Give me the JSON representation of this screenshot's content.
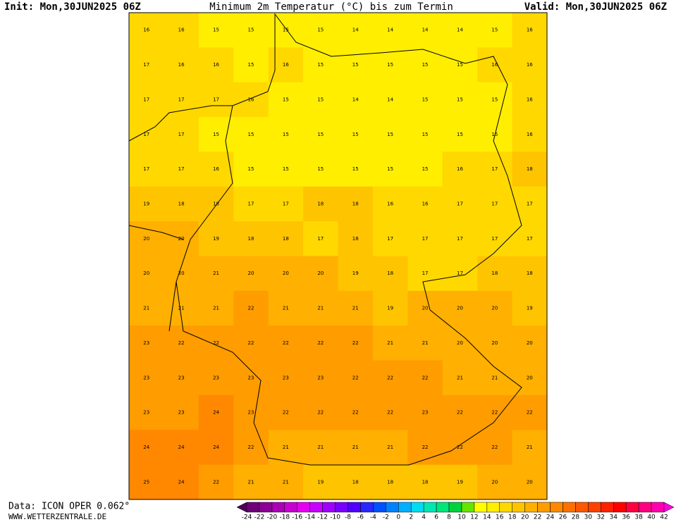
{
  "header": {
    "init": "Init: Mon,30JUN2025 06Z",
    "title": "Minimum 2m Temperatur (°C) bis zum Termin",
    "valid": "Valid: Mon,30JUN2025 06Z"
  },
  "footer": {
    "data": "Data: ICON OPER 0.062°",
    "site": "WWW.WETTERZENTRALE.DE"
  },
  "grid": [
    [
      16,
      16,
      15,
      15,
      15,
      15,
      14,
      14,
      14,
      14,
      15,
      16
    ],
    [
      17,
      16,
      16,
      15,
      16,
      15,
      15,
      15,
      15,
      15,
      16,
      16
    ],
    [
      17,
      17,
      17,
      16,
      15,
      15,
      14,
      14,
      15,
      15,
      15,
      16
    ],
    [
      17,
      17,
      15,
      15,
      15,
      15,
      15,
      15,
      15,
      15,
      15,
      16
    ],
    [
      17,
      17,
      16,
      15,
      15,
      15,
      15,
      15,
      15,
      16,
      17,
      18
    ],
    [
      19,
      18,
      18,
      17,
      17,
      18,
      18,
      16,
      16,
      17,
      17,
      17
    ],
    [
      20,
      20,
      19,
      18,
      18,
      17,
      18,
      17,
      17,
      17,
      17,
      17
    ],
    [
      20,
      20,
      21,
      20,
      20,
      20,
      19,
      18,
      17,
      17,
      18,
      18
    ],
    [
      21,
      21,
      21,
      22,
      21,
      21,
      21,
      19,
      20,
      20,
      20,
      19
    ],
    [
      23,
      22,
      22,
      22,
      22,
      22,
      22,
      21,
      21,
      20,
      20,
      20
    ],
    [
      23,
      23,
      23,
      23,
      23,
      23,
      22,
      22,
      22,
      21,
      21,
      20
    ],
    [
      23,
      23,
      24,
      23,
      22,
      22,
      22,
      22,
      23,
      22,
      22,
      22
    ],
    [
      24,
      24,
      24,
      22,
      21,
      21,
      21,
      21,
      22,
      22,
      22,
      21
    ],
    [
      25,
      24,
      22,
      21,
      21,
      19,
      18,
      18,
      18,
      19,
      20,
      20
    ]
  ],
  "colorbar": {
    "levels": [
      -24,
      -22,
      -20,
      -18,
      -16,
      -14,
      -12,
      -10,
      -8,
      -6,
      -4,
      -2,
      0,
      2,
      4,
      6,
      8,
      10,
      12,
      14,
      16,
      18,
      20,
      22,
      24,
      26,
      28,
      30,
      32,
      34,
      36,
      38,
      40,
      42
    ],
    "colors": [
      "#50005a",
      "#6e0078",
      "#8c0096",
      "#aa00b4",
      "#c800d2",
      "#e600f0",
      "#c800ff",
      "#a000ff",
      "#7800ff",
      "#5000ff",
      "#2828ff",
      "#0050ff",
      "#0080ff",
      "#00b0ff",
      "#00dcf0",
      "#00e6b4",
      "#00e678",
      "#00d23c",
      "#64e600",
      "#ffff00",
      "#ffee00",
      "#ffd800",
      "#ffc400",
      "#ffb000",
      "#ff9c00",
      "#ff8800",
      "#ff7000",
      "#ff5800",
      "#ff4000",
      "#ff2000",
      "#ff0000",
      "#ff0040",
      "#ff0080",
      "#ff00b0",
      "#ff00e0"
    ]
  }
}
